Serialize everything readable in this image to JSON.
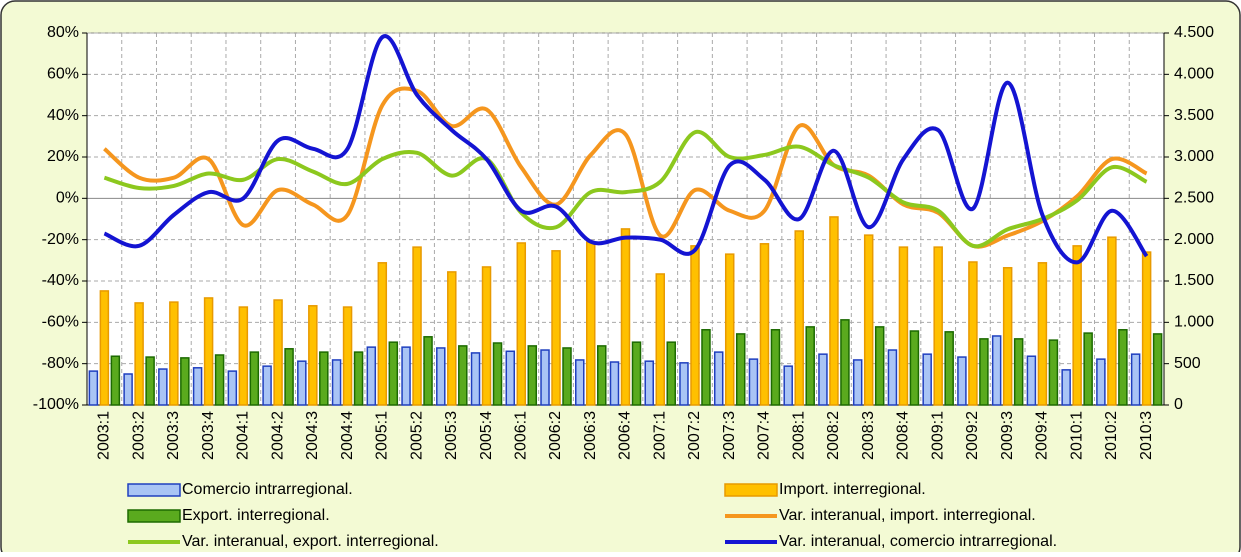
{
  "chart_data": {
    "type": "bar-line",
    "categories": [
      "2003:1",
      "2003:2",
      "2003:3",
      "2003:4",
      "2004:1",
      "2004:2",
      "2004:3",
      "2004:4",
      "2005:1",
      "2005:2",
      "2005:3",
      "2005:4",
      "2006:1",
      "2006:2",
      "2006:3",
      "2006:4",
      "2007:1",
      "2007:2",
      "2007:3",
      "2007:4",
      "2008:1",
      "2008:2",
      "2008:3",
      "2008:4",
      "2009:1",
      "2009:2",
      "2009:3",
      "2009:4",
      "2010:1",
      "2010:2",
      "2010:3"
    ],
    "series": [
      {
        "name": "Comercio intrarregional.",
        "kind": "bar",
        "axis": "y2",
        "color": "#a9c4f5",
        "stroke": "#1f3fbf",
        "values": [
          410,
          375,
          435,
          450,
          410,
          470,
          530,
          545,
          700,
          700,
          690,
          630,
          650,
          665,
          545,
          520,
          530,
          510,
          640,
          555,
          470,
          615,
          545,
          665,
          615,
          580,
          835,
          590,
          425,
          555,
          615
        ]
      },
      {
        "name": "Import. interregional.",
        "kind": "bar",
        "axis": "y2",
        "color": "#ffc000",
        "stroke": "#e89a00",
        "values": [
          1380,
          1235,
          1245,
          1295,
          1185,
          1270,
          1200,
          1185,
          1720,
          1910,
          1610,
          1670,
          1960,
          1865,
          1970,
          2130,
          1585,
          1925,
          1825,
          1950,
          2105,
          2275,
          2055,
          1910,
          1910,
          1730,
          1660,
          1720,
          1925,
          2030,
          1850
        ]
      },
      {
        "name": "Export. interregional.",
        "kind": "bar",
        "axis": "y2",
        "color": "#5aaa1e",
        "stroke": "#1c6a00",
        "values": [
          590,
          580,
          570,
          605,
          640,
          680,
          640,
          640,
          760,
          825,
          715,
          750,
          715,
          690,
          715,
          760,
          760,
          910,
          860,
          910,
          945,
          1030,
          945,
          895,
          885,
          800,
          800,
          785,
          870,
          910,
          860
        ]
      },
      {
        "name": "Var. interanual, import. interregional.",
        "kind": "line",
        "color": "#f5961e",
        "values": [
          24,
          10,
          10,
          19,
          -13,
          4,
          -3,
          -8,
          45,
          52,
          35,
          43,
          15,
          -3,
          21,
          31,
          -18,
          4,
          -6,
          -6,
          35,
          16,
          11,
          -3,
          -7,
          -23,
          -18,
          -11,
          1,
          19,
          12
        ]
      },
      {
        "name": "Var. interanual, export. interregional.",
        "kind": "line",
        "color": "#8cc81e",
        "values": [
          10,
          5,
          6,
          12,
          9,
          19,
          13,
          7,
          19,
          22,
          11,
          19,
          -7,
          -14,
          3,
          3,
          8,
          32,
          20,
          21,
          25,
          16,
          10,
          -2,
          -6,
          -23,
          -15,
          -10,
          -1,
          15,
          8
        ]
      },
      {
        "name": "Var. interanual, comercio intrarregional.",
        "kind": "line",
        "color": "#1414d2",
        "values": [
          -17,
          -23,
          -8,
          3,
          0,
          28,
          24,
          24,
          78,
          50,
          33,
          19,
          -6,
          -4,
          -21,
          -19,
          -20,
          -25,
          16,
          9,
          -10,
          23,
          -14,
          19,
          33,
          -5,
          56,
          -8,
          -31,
          -6,
          -28
        ]
      }
    ],
    "ylim": [
      -100,
      80
    ],
    "yticks": [
      {
        "value": -100,
        "label": "-100%"
      },
      {
        "value": -80,
        "label": "-80%"
      },
      {
        "value": -60,
        "label": "-60%"
      },
      {
        "value": -40,
        "label": "-40%"
      },
      {
        "value": -20,
        "label": "-20%"
      },
      {
        "value": 0,
        "label": "0%"
      },
      {
        "value": 20,
        "label": "20%"
      },
      {
        "value": 40,
        "label": "40%"
      },
      {
        "value": 60,
        "label": "60%"
      },
      {
        "value": 80,
        "label": "80%"
      }
    ],
    "y2lim": [
      0,
      4500
    ],
    "y2ticks": [
      0,
      {
        "value": 500,
        "label": "500"
      },
      {
        "value": 1000,
        "label": "1.000"
      },
      {
        "value": 1500,
        "label": "1.500"
      },
      {
        "value": 2000,
        "label": "2.000"
      },
      {
        "value": 2500,
        "label": "2.500"
      },
      {
        "value": 3000,
        "label": "3.000"
      },
      {
        "value": 3500,
        "label": "3.500"
      },
      {
        "value": 4000,
        "label": "4.000"
      },
      {
        "value": 4500,
        "label": "4.500"
      }
    ],
    "grid": true,
    "legend": "bottom"
  }
}
